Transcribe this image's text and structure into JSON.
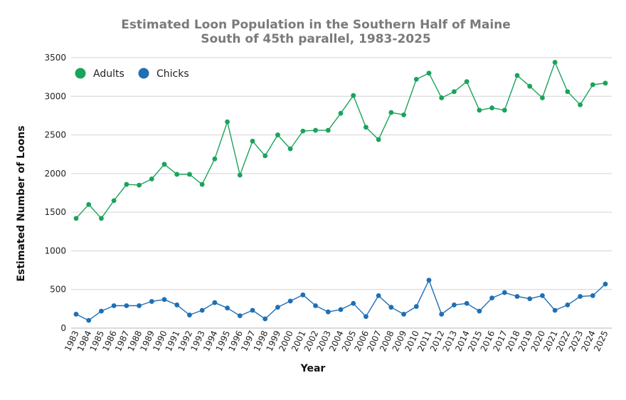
{
  "chart_data": {
    "type": "line",
    "title": "Estimated Loon Population in the Southern Half of Maine",
    "subtitle": "South of 45th parallel, 1983-2025",
    "xlabel": "Year",
    "ylabel": "Estimated Number of Loons",
    "ylim": [
      0,
      3500
    ],
    "yticks": [
      0,
      500,
      1000,
      1500,
      2000,
      2500,
      3000,
      3500
    ],
    "grid": true,
    "legend_position": "top-left",
    "categories": [
      "1983",
      "1984",
      "1985",
      "1986",
      "1987",
      "1988",
      "1989",
      "1990",
      "1991",
      "1992",
      "1993",
      "1994",
      "1995",
      "1996",
      "1997",
      "1998",
      "1999",
      "2000",
      "2001",
      "2002",
      "2003",
      "2004",
      "2005",
      "2006",
      "2007",
      "2008",
      "2009",
      "2010",
      "2011",
      "2012",
      "2013",
      "2014",
      "2015",
      "2016",
      "2017",
      "2018",
      "2019",
      "2020",
      "2021",
      "2022",
      "2023",
      "2024",
      "2025"
    ],
    "series": [
      {
        "name": "Adults",
        "color": "#1aa35a",
        "values": [
          1420,
          1600,
          1420,
          1650,
          1860,
          1850,
          1930,
          2120,
          1990,
          1990,
          1860,
          2190,
          2670,
          1980,
          2420,
          2230,
          2500,
          2320,
          2550,
          2560,
          2560,
          2780,
          3010,
          2600,
          2440,
          2790,
          2760,
          3220,
          3300,
          2980,
          3060,
          3190,
          2820,
          2850,
          2820,
          3270,
          3130,
          2980,
          3440,
          3060,
          2890,
          3150,
          3170
        ]
      },
      {
        "name": "Chicks",
        "color": "#1f6fb4",
        "values": [
          180,
          100,
          220,
          290,
          290,
          290,
          345,
          370,
          300,
          170,
          230,
          330,
          260,
          160,
          230,
          120,
          270,
          350,
          430,
          290,
          210,
          240,
          320,
          150,
          420,
          270,
          180,
          280,
          620,
          180,
          300,
          320,
          220,
          390,
          460,
          410,
          380,
          420,
          230,
          300,
          410,
          420,
          570
        ]
      }
    ]
  }
}
